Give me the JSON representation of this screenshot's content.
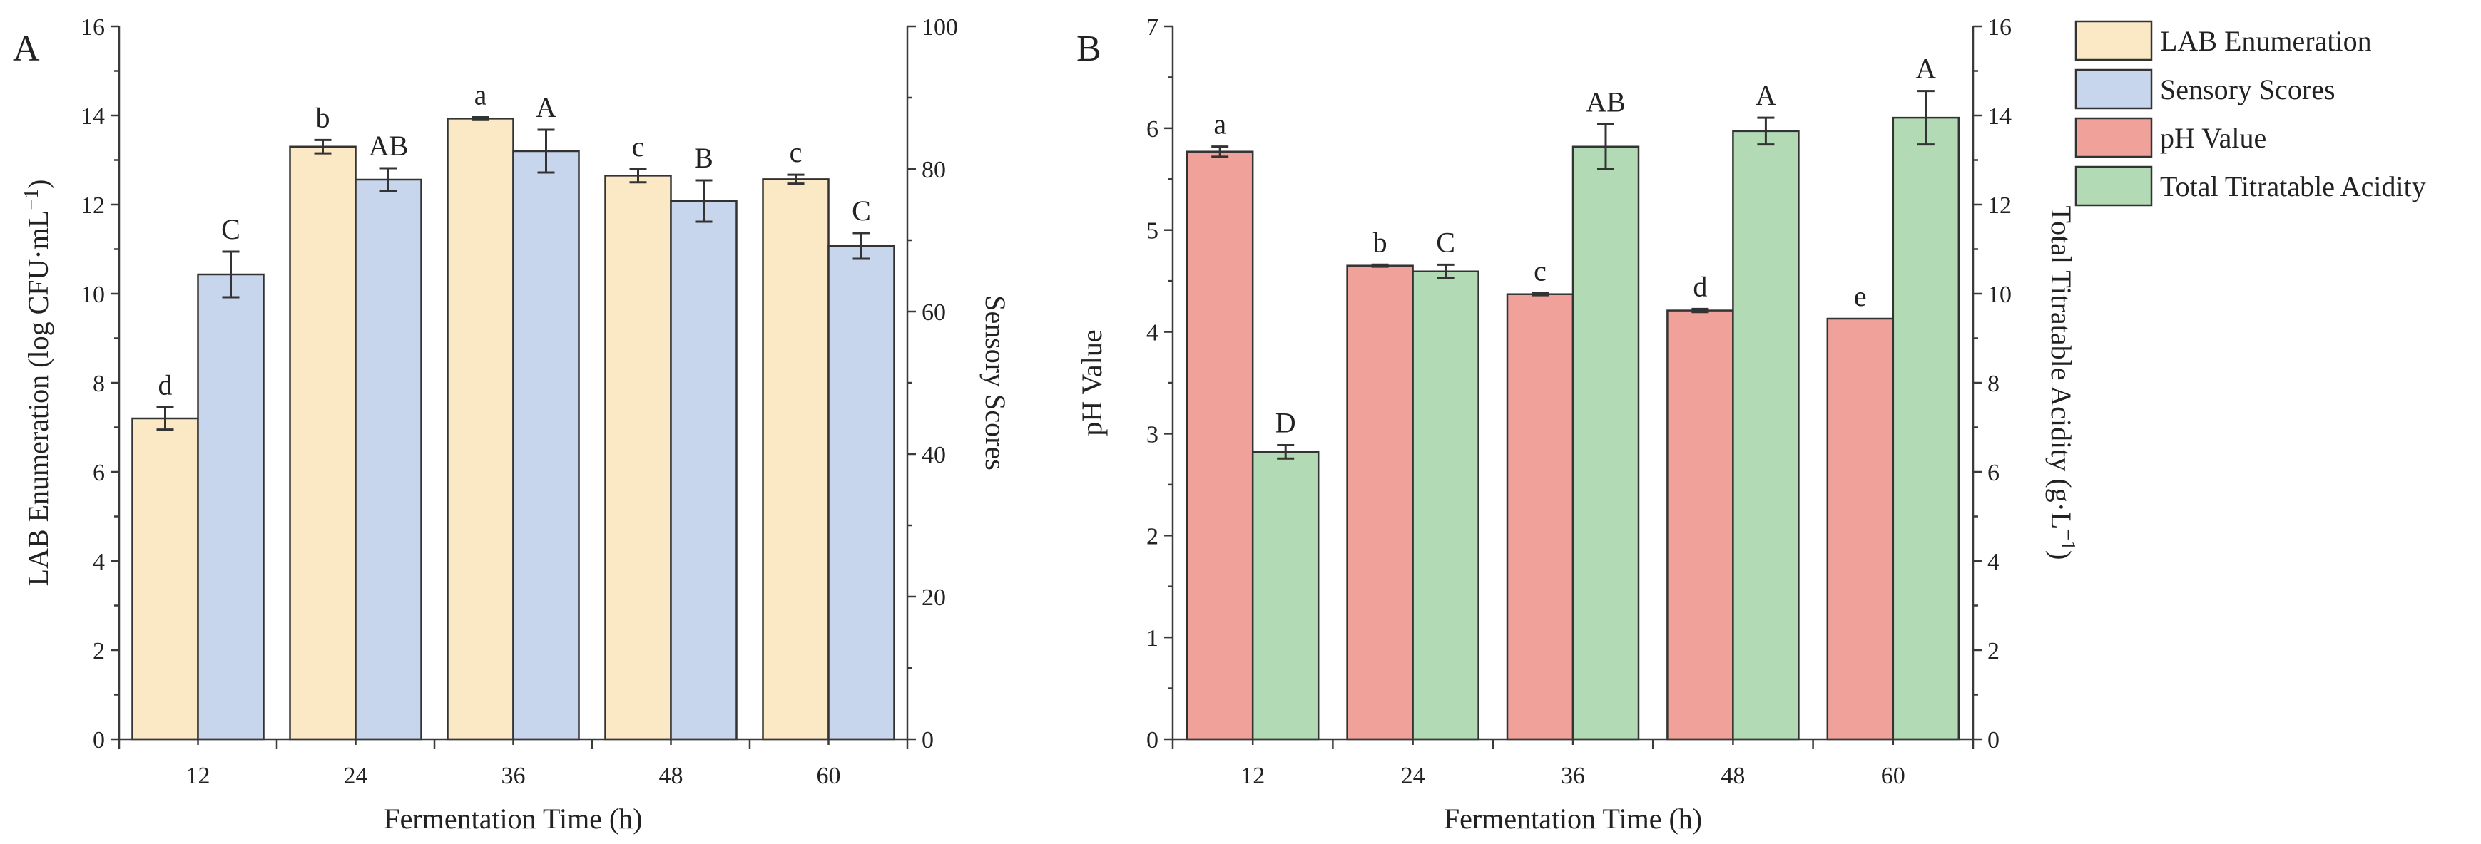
{
  "chart_data": [
    {
      "panel": "A",
      "type": "bar",
      "xlabel": "Fermentation Time (h)",
      "categories": [
        "12",
        "24",
        "36",
        "48",
        "60"
      ],
      "y_left": {
        "label": "LAB Enumeration (log CFU·mL",
        "sup": "−1",
        "suffix": ")",
        "lim": [
          0,
          16
        ],
        "ticks": [
          0,
          2,
          4,
          6,
          8,
          10,
          12,
          14,
          16
        ]
      },
      "y_right": {
        "label": "Sensory Scores",
        "lim": [
          0,
          100
        ],
        "ticks": [
          0,
          20,
          40,
          60,
          80,
          100
        ]
      },
      "series": [
        {
          "name": "LAB Enumeration",
          "axis": "left",
          "color": "#fbe9c6",
          "values": [
            7.2,
            13.3,
            13.93,
            12.65,
            12.57
          ],
          "errors": [
            0.25,
            0.15,
            0.03,
            0.15,
            0.1
          ],
          "letters": [
            "d",
            "b",
            "a",
            "c",
            "c"
          ]
        },
        {
          "name": "Sensory Scores",
          "axis": "right",
          "color": "#c8d6ed",
          "values": [
            65.2,
            78.5,
            82.5,
            75.5,
            69.2
          ],
          "errors": [
            3.2,
            1.6,
            3.0,
            2.9,
            1.8
          ],
          "letters": [
            "C",
            "AB",
            "A",
            "B",
            "C"
          ]
        }
      ]
    },
    {
      "panel": "B",
      "type": "bar",
      "xlabel": "Fermentation Time (h)",
      "categories": [
        "12",
        "24",
        "36",
        "48",
        "60"
      ],
      "y_left": {
        "label": "pH Value",
        "lim": [
          0,
          7
        ],
        "ticks": [
          0,
          1,
          2,
          3,
          4,
          5,
          6,
          7
        ]
      },
      "y_right": {
        "label": "Total Titratable Acidity (g·L",
        "sup": "−1",
        "suffix": ")",
        "lim": [
          0,
          16
        ],
        "ticks": [
          0,
          2,
          4,
          6,
          8,
          10,
          12,
          14,
          16
        ]
      },
      "series": [
        {
          "name": "pH Value",
          "axis": "left",
          "color": "#f0a19a",
          "values": [
            5.77,
            4.65,
            4.37,
            4.21,
            4.13
          ],
          "errors": [
            0.05,
            0.01,
            0.01,
            0.015,
            0.0
          ],
          "letters": [
            "a",
            "b",
            "c",
            "d",
            "e"
          ]
        },
        {
          "name": "Total Titratable Acidity",
          "axis": "right",
          "color": "#b2dbb5",
          "values": [
            6.45,
            10.5,
            13.3,
            13.65,
            13.95
          ],
          "errors": [
            0.15,
            0.15,
            0.5,
            0.3,
            0.6
          ],
          "letters": [
            "D",
            "C",
            "AB",
            "A",
            "A"
          ]
        }
      ]
    }
  ],
  "legend": {
    "items": [
      {
        "label": "LAB Enumeration",
        "color": "#fbe9c6"
      },
      {
        "label": "Sensory Scores",
        "color": "#c8d6ed"
      },
      {
        "label": "pH Value",
        "color": "#f0a19a"
      },
      {
        "label": "Total Titratable Acidity",
        "color": "#b2dbb5"
      }
    ]
  }
}
